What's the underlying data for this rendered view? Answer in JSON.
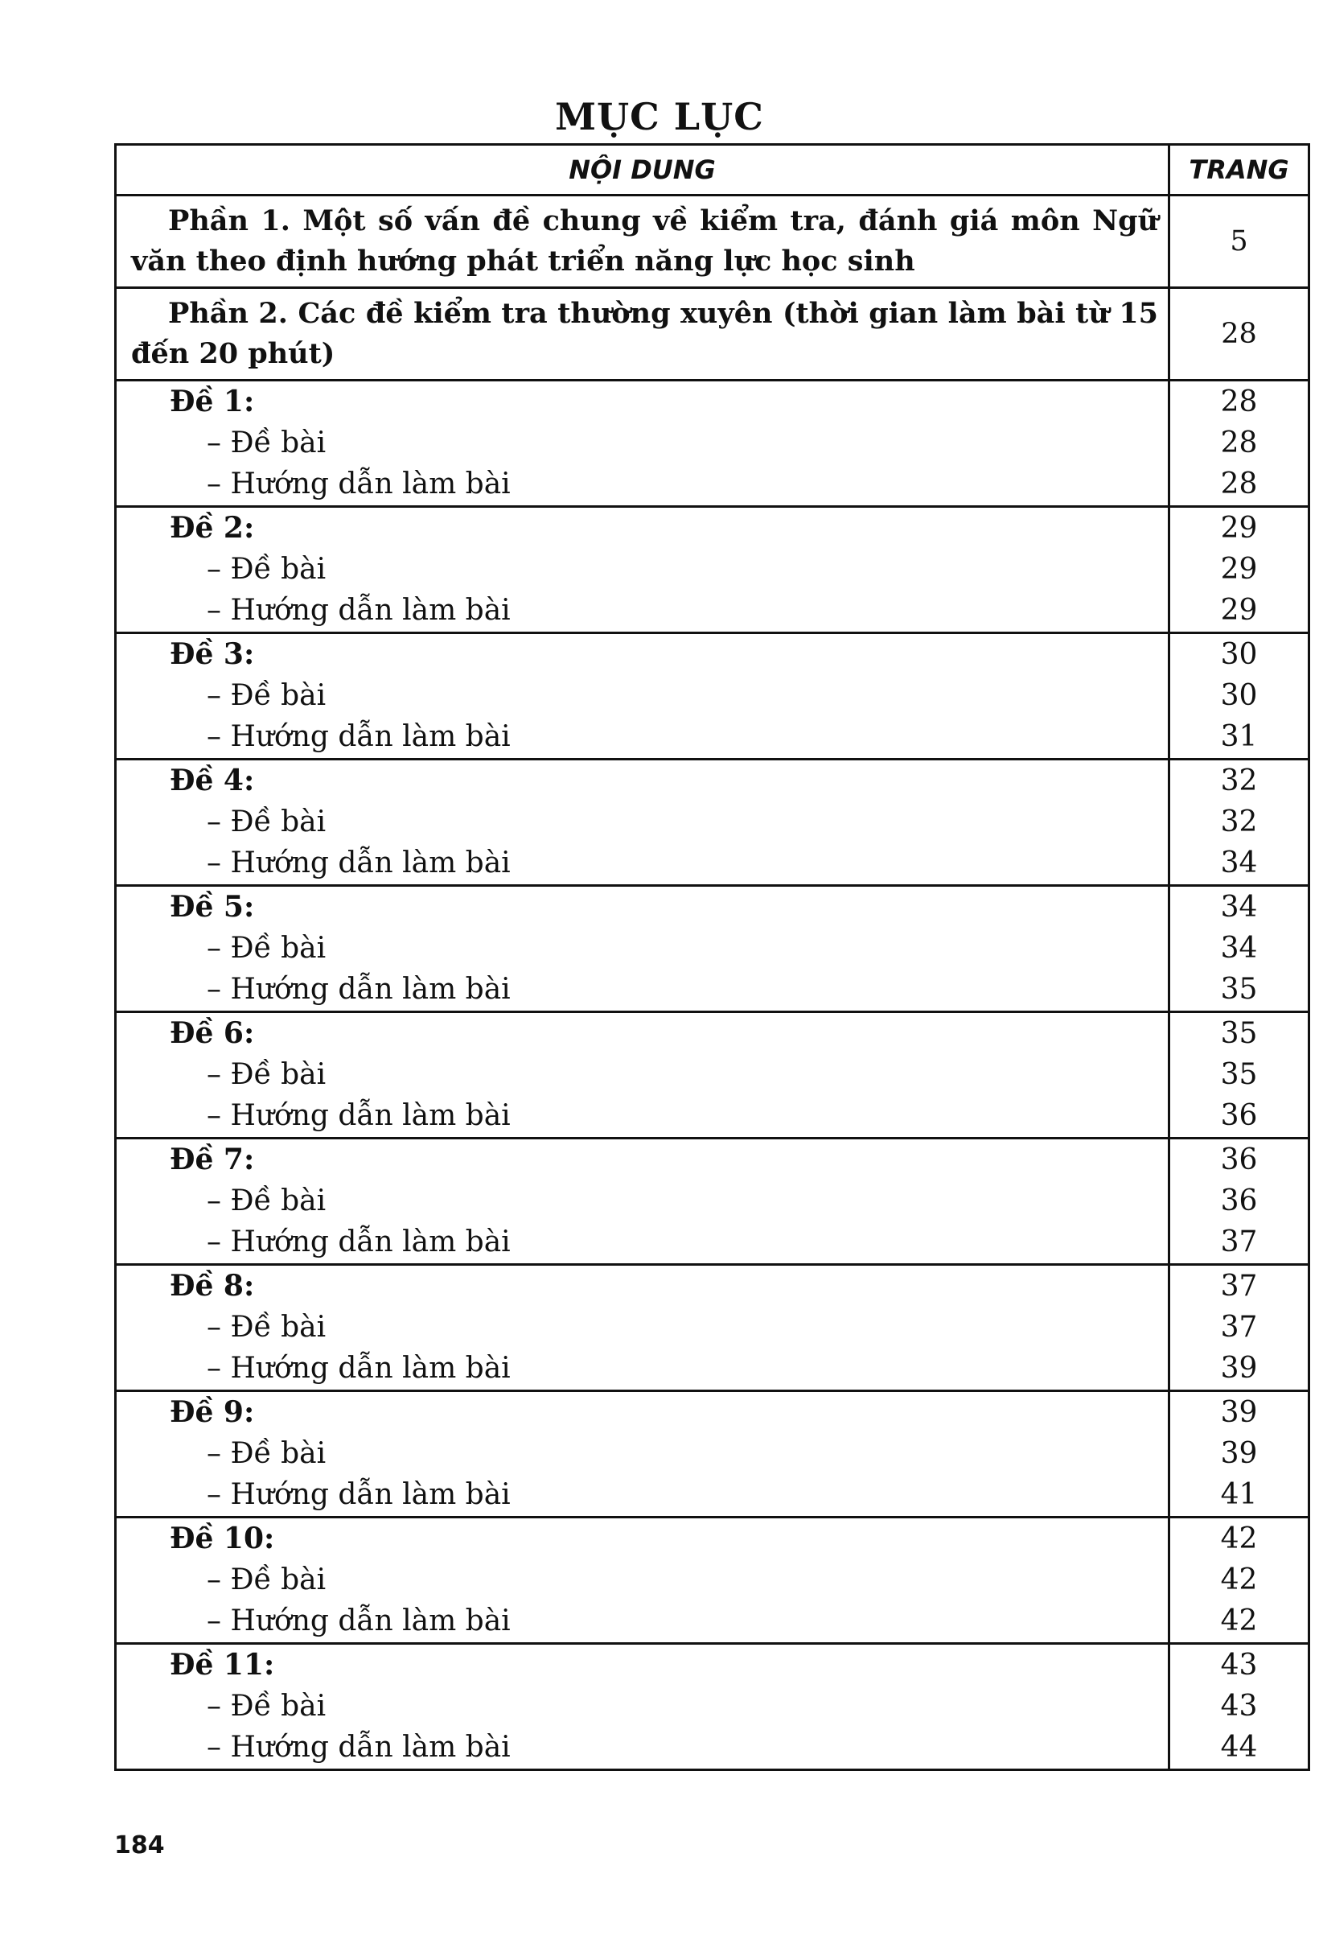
{
  "title": "MỤC LỤC",
  "table": {
    "headers": {
      "content": "NỘI DUNG",
      "page": "TRANG"
    },
    "parts": [
      {
        "text": "Phần 1. Một số vấn đề chung về kiểm tra, đánh giá môn Ngữ văn theo định hướng phát triển năng lực học sinh",
        "page": "5"
      },
      {
        "text": "Phần 2. Các đề kiểm tra thường xuyên (thời gian làm bài từ 15 đến 20 phút)",
        "page": "28"
      }
    ],
    "sub_labels": {
      "problem": "– Đề bài",
      "guide": "– Hướng dẫn làm bài"
    },
    "groups": [
      {
        "title": "Đề 1:",
        "pages": [
          "28",
          "28",
          "28"
        ]
      },
      {
        "title": "Đề 2:",
        "pages": [
          "29",
          "29",
          "29"
        ]
      },
      {
        "title": "Đề 3:",
        "pages": [
          "30",
          "30",
          "31"
        ]
      },
      {
        "title": "Đề 4:",
        "pages": [
          "32",
          "32",
          "34"
        ]
      },
      {
        "title": "Đề 5:",
        "pages": [
          "34",
          "34",
          "35"
        ]
      },
      {
        "title": "Đề 6:",
        "pages": [
          "35",
          "35",
          "36"
        ]
      },
      {
        "title": "Đề 7:",
        "pages": [
          "36",
          "36",
          "37"
        ]
      },
      {
        "title": "Đề 8:",
        "pages": [
          "37",
          "37",
          "39"
        ]
      },
      {
        "title": "Đề 9:",
        "pages": [
          "39",
          "39",
          "41"
        ]
      },
      {
        "title": "Đề 10:",
        "pages": [
          "42",
          "42",
          "42"
        ]
      },
      {
        "title": "Đề 11:",
        "pages": [
          "43",
          "43",
          "44"
        ]
      }
    ]
  },
  "page_number": "184"
}
